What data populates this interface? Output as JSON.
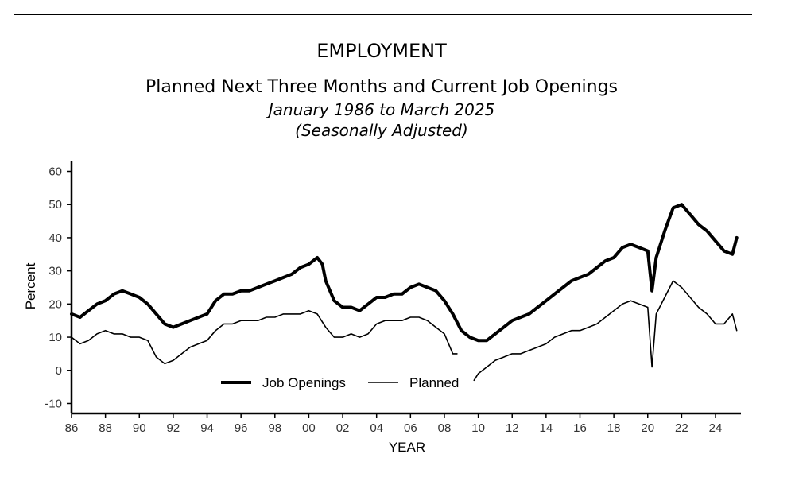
{
  "header": {
    "title": "EMPLOYMENT",
    "subtitle": "Planned Next Three Months and Current Job Openings",
    "date_range": "January 1986 to March 2025",
    "note": "(Seasonally Adjusted)"
  },
  "chart_data": {
    "type": "line",
    "xlabel": "YEAR",
    "ylabel": "Percent",
    "xlim": [
      1986,
      2025.5
    ],
    "ylim": [
      -13,
      63
    ],
    "y_ticks": [
      -10,
      0,
      10,
      20,
      30,
      40,
      50,
      60
    ],
    "x_ticks": [
      {
        "value": 1986,
        "label": "86"
      },
      {
        "value": 1988,
        "label": "88"
      },
      {
        "value": 1990,
        "label": "90"
      },
      {
        "value": 1992,
        "label": "92"
      },
      {
        "value": 1994,
        "label": "94"
      },
      {
        "value": 1996,
        "label": "96"
      },
      {
        "value": 1998,
        "label": "98"
      },
      {
        "value": 2000,
        "label": "00"
      },
      {
        "value": 2002,
        "label": "02"
      },
      {
        "value": 2004,
        "label": "04"
      },
      {
        "value": 2006,
        "label": "06"
      },
      {
        "value": 2008,
        "label": "08"
      },
      {
        "value": 2010,
        "label": "10"
      },
      {
        "value": 2012,
        "label": "12"
      },
      {
        "value": 2014,
        "label": "14"
      },
      {
        "value": 2016,
        "label": "16"
      },
      {
        "value": 2018,
        "label": "18"
      },
      {
        "value": 2020,
        "label": "20"
      },
      {
        "value": 2022,
        "label": "22"
      },
      {
        "value": 2024,
        "label": "24"
      }
    ],
    "grid": false,
    "legend_position": "bottom-center",
    "series": [
      {
        "name": "Job Openings",
        "style": "thick",
        "color": "#000000",
        "points": [
          [
            1986.0,
            17
          ],
          [
            1986.5,
            16
          ],
          [
            1987.0,
            18
          ],
          [
            1987.5,
            20
          ],
          [
            1988.0,
            21
          ],
          [
            1988.5,
            23
          ],
          [
            1989.0,
            24
          ],
          [
            1989.5,
            23
          ],
          [
            1990.0,
            22
          ],
          [
            1990.5,
            20
          ],
          [
            1991.0,
            17
          ],
          [
            1991.5,
            14
          ],
          [
            1992.0,
            13
          ],
          [
            1992.5,
            14
          ],
          [
            1993.0,
            15
          ],
          [
            1993.5,
            16
          ],
          [
            1994.0,
            17
          ],
          [
            1994.5,
            21
          ],
          [
            1995.0,
            23
          ],
          [
            1995.5,
            23
          ],
          [
            1996.0,
            24
          ],
          [
            1996.5,
            24
          ],
          [
            1997.0,
            25
          ],
          [
            1997.5,
            26
          ],
          [
            1998.0,
            27
          ],
          [
            1998.5,
            28
          ],
          [
            1999.0,
            29
          ],
          [
            1999.5,
            31
          ],
          [
            2000.0,
            32
          ],
          [
            2000.5,
            34
          ],
          [
            2000.8,
            32
          ],
          [
            2001.0,
            27
          ],
          [
            2001.5,
            21
          ],
          [
            2002.0,
            19
          ],
          [
            2002.5,
            19
          ],
          [
            2003.0,
            18
          ],
          [
            2003.5,
            20
          ],
          [
            2004.0,
            22
          ],
          [
            2004.5,
            22
          ],
          [
            2005.0,
            23
          ],
          [
            2005.5,
            23
          ],
          [
            2006.0,
            25
          ],
          [
            2006.5,
            26
          ],
          [
            2007.0,
            25
          ],
          [
            2007.5,
            24
          ],
          [
            2008.0,
            21
          ],
          [
            2008.5,
            17
          ],
          [
            2009.0,
            12
          ],
          [
            2009.5,
            10
          ],
          [
            2010.0,
            9
          ],
          [
            2010.5,
            9
          ],
          [
            2011.0,
            11
          ],
          [
            2011.5,
            13
          ],
          [
            2012.0,
            15
          ],
          [
            2012.5,
            16
          ],
          [
            2013.0,
            17
          ],
          [
            2013.5,
            19
          ],
          [
            2014.0,
            21
          ],
          [
            2014.5,
            23
          ],
          [
            2015.0,
            25
          ],
          [
            2015.5,
            27
          ],
          [
            2016.0,
            28
          ],
          [
            2016.5,
            29
          ],
          [
            2017.0,
            31
          ],
          [
            2017.5,
            33
          ],
          [
            2018.0,
            34
          ],
          [
            2018.5,
            37
          ],
          [
            2019.0,
            38
          ],
          [
            2019.5,
            37
          ],
          [
            2020.0,
            36
          ],
          [
            2020.25,
            24
          ],
          [
            2020.5,
            34
          ],
          [
            2021.0,
            42
          ],
          [
            2021.5,
            49
          ],
          [
            2022.0,
            50
          ],
          [
            2022.5,
            47
          ],
          [
            2023.0,
            44
          ],
          [
            2023.5,
            42
          ],
          [
            2024.0,
            39
          ],
          [
            2024.5,
            36
          ],
          [
            2025.0,
            35
          ],
          [
            2025.25,
            40
          ]
        ]
      },
      {
        "name": "Planned",
        "style": "thin",
        "color": "#000000",
        "points": [
          [
            1986.0,
            10
          ],
          [
            1986.5,
            8
          ],
          [
            1987.0,
            9
          ],
          [
            1987.5,
            11
          ],
          [
            1988.0,
            12
          ],
          [
            1988.5,
            11
          ],
          [
            1989.0,
            11
          ],
          [
            1989.5,
            10
          ],
          [
            1990.0,
            10
          ],
          [
            1990.5,
            9
          ],
          [
            1991.0,
            4
          ],
          [
            1991.5,
            2
          ],
          [
            1992.0,
            3
          ],
          [
            1992.5,
            5
          ],
          [
            1993.0,
            7
          ],
          [
            1993.5,
            8
          ],
          [
            1994.0,
            9
          ],
          [
            1994.5,
            12
          ],
          [
            1995.0,
            14
          ],
          [
            1995.5,
            14
          ],
          [
            1996.0,
            15
          ],
          [
            1996.5,
            15
          ],
          [
            1997.0,
            15
          ],
          [
            1997.5,
            16
          ],
          [
            1998.0,
            16
          ],
          [
            1998.5,
            17
          ],
          [
            1999.0,
            17
          ],
          [
            1999.5,
            17
          ],
          [
            2000.0,
            18
          ],
          [
            2000.5,
            17
          ],
          [
            2001.0,
            13
          ],
          [
            2001.5,
            10
          ],
          [
            2002.0,
            10
          ],
          [
            2002.5,
            11
          ],
          [
            2003.0,
            10
          ],
          [
            2003.5,
            11
          ],
          [
            2004.0,
            14
          ],
          [
            2004.5,
            15
          ],
          [
            2005.0,
            15
          ],
          [
            2005.5,
            15
          ],
          [
            2006.0,
            16
          ],
          [
            2006.5,
            16
          ],
          [
            2007.0,
            15
          ],
          [
            2007.5,
            13
          ],
          [
            2008.0,
            11
          ],
          [
            2008.5,
            5
          ],
          [
            2008.75,
            5
          ],
          null,
          [
            2009.75,
            -3
          ],
          [
            2010.0,
            -1
          ],
          [
            2010.5,
            1
          ],
          [
            2011.0,
            3
          ],
          [
            2011.5,
            4
          ],
          [
            2012.0,
            5
          ],
          [
            2012.5,
            5
          ],
          [
            2013.0,
            6
          ],
          [
            2013.5,
            7
          ],
          [
            2014.0,
            8
          ],
          [
            2014.5,
            10
          ],
          [
            2015.0,
            11
          ],
          [
            2015.5,
            12
          ],
          [
            2016.0,
            12
          ],
          [
            2016.5,
            13
          ],
          [
            2017.0,
            14
          ],
          [
            2017.5,
            16
          ],
          [
            2018.0,
            18
          ],
          [
            2018.5,
            20
          ],
          [
            2019.0,
            21
          ],
          [
            2019.5,
            20
          ],
          [
            2020.0,
            19
          ],
          [
            2020.25,
            1
          ],
          [
            2020.5,
            17
          ],
          [
            2021.0,
            22
          ],
          [
            2021.5,
            27
          ],
          [
            2022.0,
            25
          ],
          [
            2022.5,
            22
          ],
          [
            2023.0,
            19
          ],
          [
            2023.5,
            17
          ],
          [
            2024.0,
            14
          ],
          [
            2024.5,
            14
          ],
          [
            2025.0,
            17
          ],
          [
            2025.25,
            12
          ]
        ]
      }
    ]
  }
}
